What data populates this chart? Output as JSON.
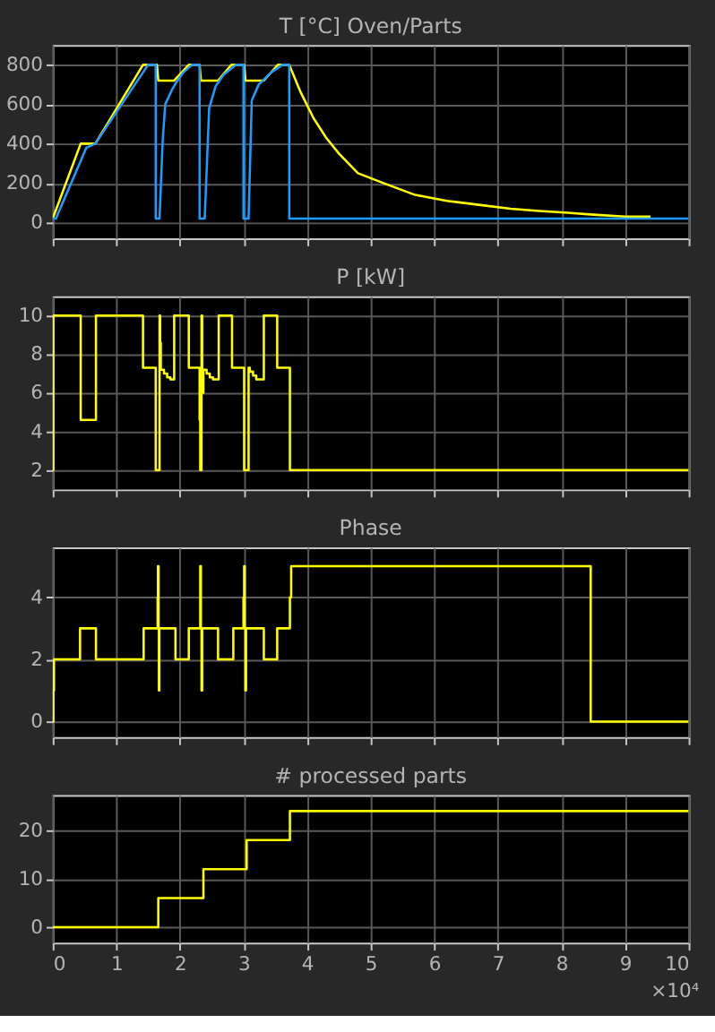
{
  "chart_data": [
    {
      "type": "line",
      "title": "T [°C] Oven/Parts",
      "xlim": [
        0,
        10
      ],
      "xticks": [
        0,
        1,
        2,
        3,
        4,
        5,
        6,
        7,
        8,
        9,
        10
      ],
      "ylim": [
        -80,
        900
      ],
      "yticks": [
        0,
        200,
        400,
        600,
        800
      ],
      "grid": true,
      "tick_labels": "y",
      "series": [
        {
          "color": "#ffff00",
          "x": [
            0,
            0.44,
            0.67,
            1.42,
            1.64,
            1.66,
            1.91,
            2.14,
            2.31,
            2.33,
            2.6,
            2.81,
            3.01,
            3.03,
            3.32,
            3.54,
            3.72,
            3.9,
            4.1,
            4.3,
            4.5,
            4.8,
            5.2,
            5.7,
            6.2,
            6.7,
            7.2,
            7.6,
            8.1,
            8.5,
            9.0,
            9.4
          ],
          "values": [
            20,
            400,
            400,
            800,
            800,
            720,
            720,
            800,
            800,
            720,
            720,
            800,
            800,
            720,
            720,
            800,
            800,
            660,
            530,
            430,
            350,
            250,
            200,
            140,
            110,
            90,
            70,
            60,
            50,
            40,
            30,
            30
          ]
        },
        {
          "color": "#1e9bff",
          "x": [
            0,
            0.05,
            0.53,
            0.67,
            1.5,
            1.62,
            1.62,
            1.68,
            1.73,
            1.77,
            1.87,
            1.96,
            2.05,
            2.19,
            2.31,
            2.31,
            2.39,
            2.46,
            2.56,
            2.69,
            2.88,
            3.0,
            3.0,
            3.08,
            3.13,
            3.24,
            3.43,
            3.61,
            3.72,
            3.72,
            10
          ],
          "values": [
            20,
            20,
            380,
            400,
            800,
            800,
            20,
            20,
            420,
            600,
            670,
            720,
            760,
            800,
            800,
            20,
            20,
            580,
            690,
            750,
            800,
            800,
            20,
            20,
            620,
            700,
            760,
            800,
            800,
            20,
            20
          ]
        }
      ]
    },
    {
      "type": "step",
      "title": "P [kW]",
      "xlim": [
        0,
        10
      ],
      "xticks": [
        0,
        1,
        2,
        3,
        4,
        5,
        6,
        7,
        8,
        9,
        10
      ],
      "ylim": [
        1,
        11
      ],
      "yticks": [
        2,
        4,
        6,
        8,
        10
      ],
      "grid": true,
      "tick_labels": "y",
      "series": [
        {
          "color": "#ffff00",
          "x": [
            0,
            0.01,
            0.44,
            0.68,
            1.42,
            1.62,
            1.68,
            1.69,
            1.7,
            1.75,
            1.8,
            1.85,
            1.91,
            2.14,
            2.31,
            2.32,
            2.34,
            2.35,
            2.37,
            2.42,
            2.47,
            2.52,
            2.61,
            2.82,
            3.01,
            3.08,
            3.1,
            3.15,
            3.2,
            3.32,
            3.53,
            3.73,
            10
          ],
          "values": [
            2,
            10,
            4.6,
            10,
            7.3,
            2,
            10,
            8.6,
            7.2,
            7.0,
            6.8,
            6.7,
            10,
            7.3,
            4.6,
            2,
            10,
            6,
            7.2,
            7.0,
            6.8,
            6.7,
            10,
            7.3,
            2,
            7.3,
            7.1,
            6.9,
            6.7,
            10,
            7.3,
            2,
            2
          ]
        }
      ]
    },
    {
      "type": "step",
      "title": "Phase",
      "xlim": [
        0,
        10
      ],
      "xticks": [
        0,
        1,
        2,
        3,
        4,
        5,
        6,
        7,
        8,
        9,
        10
      ],
      "ylim": [
        -0.5,
        5.6
      ],
      "yticks": [
        0,
        2,
        4
      ],
      "grid": true,
      "tick_labels": "y",
      "series": [
        {
          "color": "#ffff00",
          "x": [
            0,
            0.01,
            0.02,
            0.43,
            0.68,
            1.43,
            1.65,
            1.655,
            1.665,
            1.67,
            1.675,
            1.93,
            2.14,
            2.32,
            2.33,
            2.34,
            2.35,
            2.6,
            2.84,
            3.0,
            3.01,
            3.02,
            3.03,
            3.04,
            3.32,
            3.53,
            3.73,
            3.75,
            8.46,
            10
          ],
          "values": [
            0,
            1,
            2,
            3,
            2,
            3,
            4,
            5,
            3,
            1,
            3,
            2,
            3,
            5,
            3,
            1,
            3,
            2,
            3,
            4,
            5,
            3,
            1,
            3,
            2,
            3,
            4,
            5,
            0,
            0
          ]
        }
      ]
    },
    {
      "type": "step",
      "title": "# processed parts",
      "xlim": [
        0,
        10
      ],
      "xticks": [
        0,
        1,
        2,
        3,
        4,
        5,
        6,
        7,
        8,
        9,
        10
      ],
      "ylim": [
        -3.2,
        27.3
      ],
      "yticks": [
        0,
        10,
        20
      ],
      "grid": true,
      "annotations": [
        "×10⁴"
      ],
      "series": [
        {
          "color": "#ffff00",
          "x": [
            0,
            1.66,
            2.37,
            3.05,
            3.73,
            10
          ],
          "values": [
            0,
            6,
            12,
            18,
            24,
            24
          ]
        }
      ]
    }
  ]
}
